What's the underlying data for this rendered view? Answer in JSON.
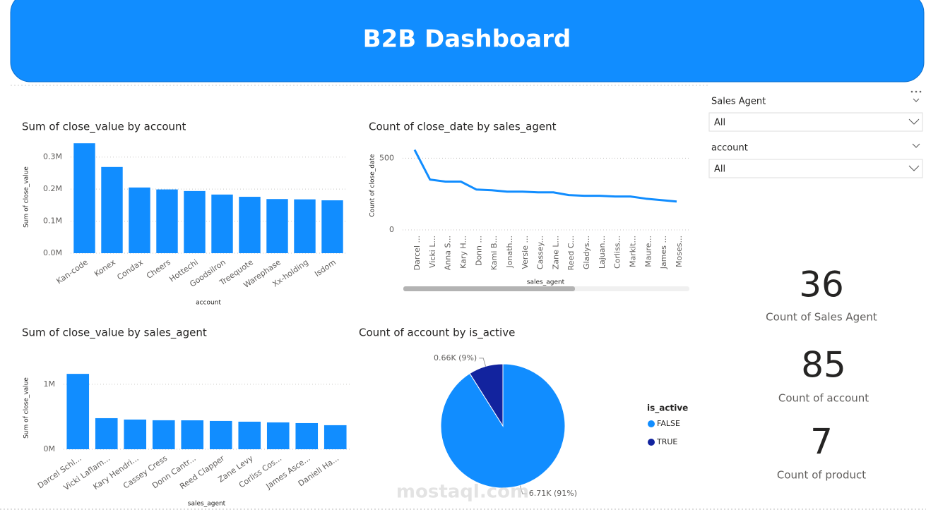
{
  "header": {
    "title": "B2B Dashboard"
  },
  "slicers": [
    {
      "label": "Sales Agent",
      "value": "All"
    },
    {
      "label": "account",
      "value": "All"
    }
  ],
  "cards": [
    {
      "value": "36",
      "label": "Count of Sales Agent"
    },
    {
      "value": "85",
      "label": "Count of account"
    },
    {
      "value": "7",
      "label": "Count of product"
    }
  ],
  "watermark": "mostaql.com",
  "chart_data": [
    {
      "type": "bar",
      "title": "Sum of close_value by account",
      "x_label": "account",
      "y_label": "Sum of close_value",
      "color": "#118DFF",
      "grid": true,
      "categories": [
        "Kan-code",
        "Konex",
        "Condax",
        "Cheers",
        "Hottechi",
        "Goodsilron",
        "Treequote",
        "Warephase",
        "Xx-holding",
        "Isdom"
      ],
      "values": [
        343000,
        269000,
        205000,
        199000,
        194000,
        183000,
        176000,
        169000,
        168000,
        165000
      ],
      "ylim": [
        0,
        350000
      ],
      "yticks": [
        {
          "value": 0,
          "label": "0.0M"
        },
        {
          "value": 100000,
          "label": "0.1M"
        },
        {
          "value": 200000,
          "label": "0.2M"
        },
        {
          "value": 300000,
          "label": "0.3M"
        }
      ]
    },
    {
      "type": "line",
      "title": "Count of close_date by sales_agent",
      "x_label": "sales_agent",
      "y_label": "Count of close_date",
      "color": "#118DFF",
      "grid": true,
      "categories": [
        "Darcel ...",
        "Vicki L...",
        "Anna S...",
        "Kary H...",
        "Donn ...",
        "Kami B...",
        "Jonath...",
        "Versie ...",
        "Cassey...",
        "Zane L...",
        "Reed C...",
        "Gladys...",
        "Lajuan...",
        "Corliss...",
        "Markit...",
        "Maure...",
        "James ...",
        "Moses..."
      ],
      "values": [
        559,
        351,
        337,
        337,
        282,
        277,
        267,
        267,
        262,
        262,
        243,
        238,
        238,
        233,
        233,
        218,
        208,
        198
      ],
      "ylim": [
        0,
        620
      ],
      "yticks": [
        0,
        500
      ]
    },
    {
      "type": "bar",
      "title": "Sum of close_value by sales_agent",
      "x_label": "sales_agent",
      "y_label": "Sum of close_value",
      "color": "#118DFF",
      "grid": true,
      "categories": [
        "Darcel Schl...",
        "Vicki Laflam...",
        "Kary Hendri...",
        "Cassey Cress",
        "Donn Cantr...",
        "Reed Clapper",
        "Zane Levy",
        "Corliss Cos...",
        "James Asce...",
        "Daniell Ha..."
      ],
      "values": [
        1160000,
        478000,
        457000,
        446000,
        445000,
        435000,
        424000,
        413000,
        402000,
        370000
      ],
      "ylim": [
        0,
        1270000
      ],
      "yticks": [
        {
          "value": 0,
          "label": "0M"
        },
        {
          "value": 1000000,
          "label": "1M"
        }
      ]
    },
    {
      "type": "pie",
      "title": "Count of account by is_active",
      "legend_title": "is_active",
      "categories": [
        "FALSE",
        "TRUE"
      ],
      "values": [
        6710,
        660
      ],
      "value_labels": [
        "6.71K (91%)",
        "0.66K (9%)"
      ],
      "colors": [
        "#118DFF",
        "#12239E"
      ]
    }
  ]
}
